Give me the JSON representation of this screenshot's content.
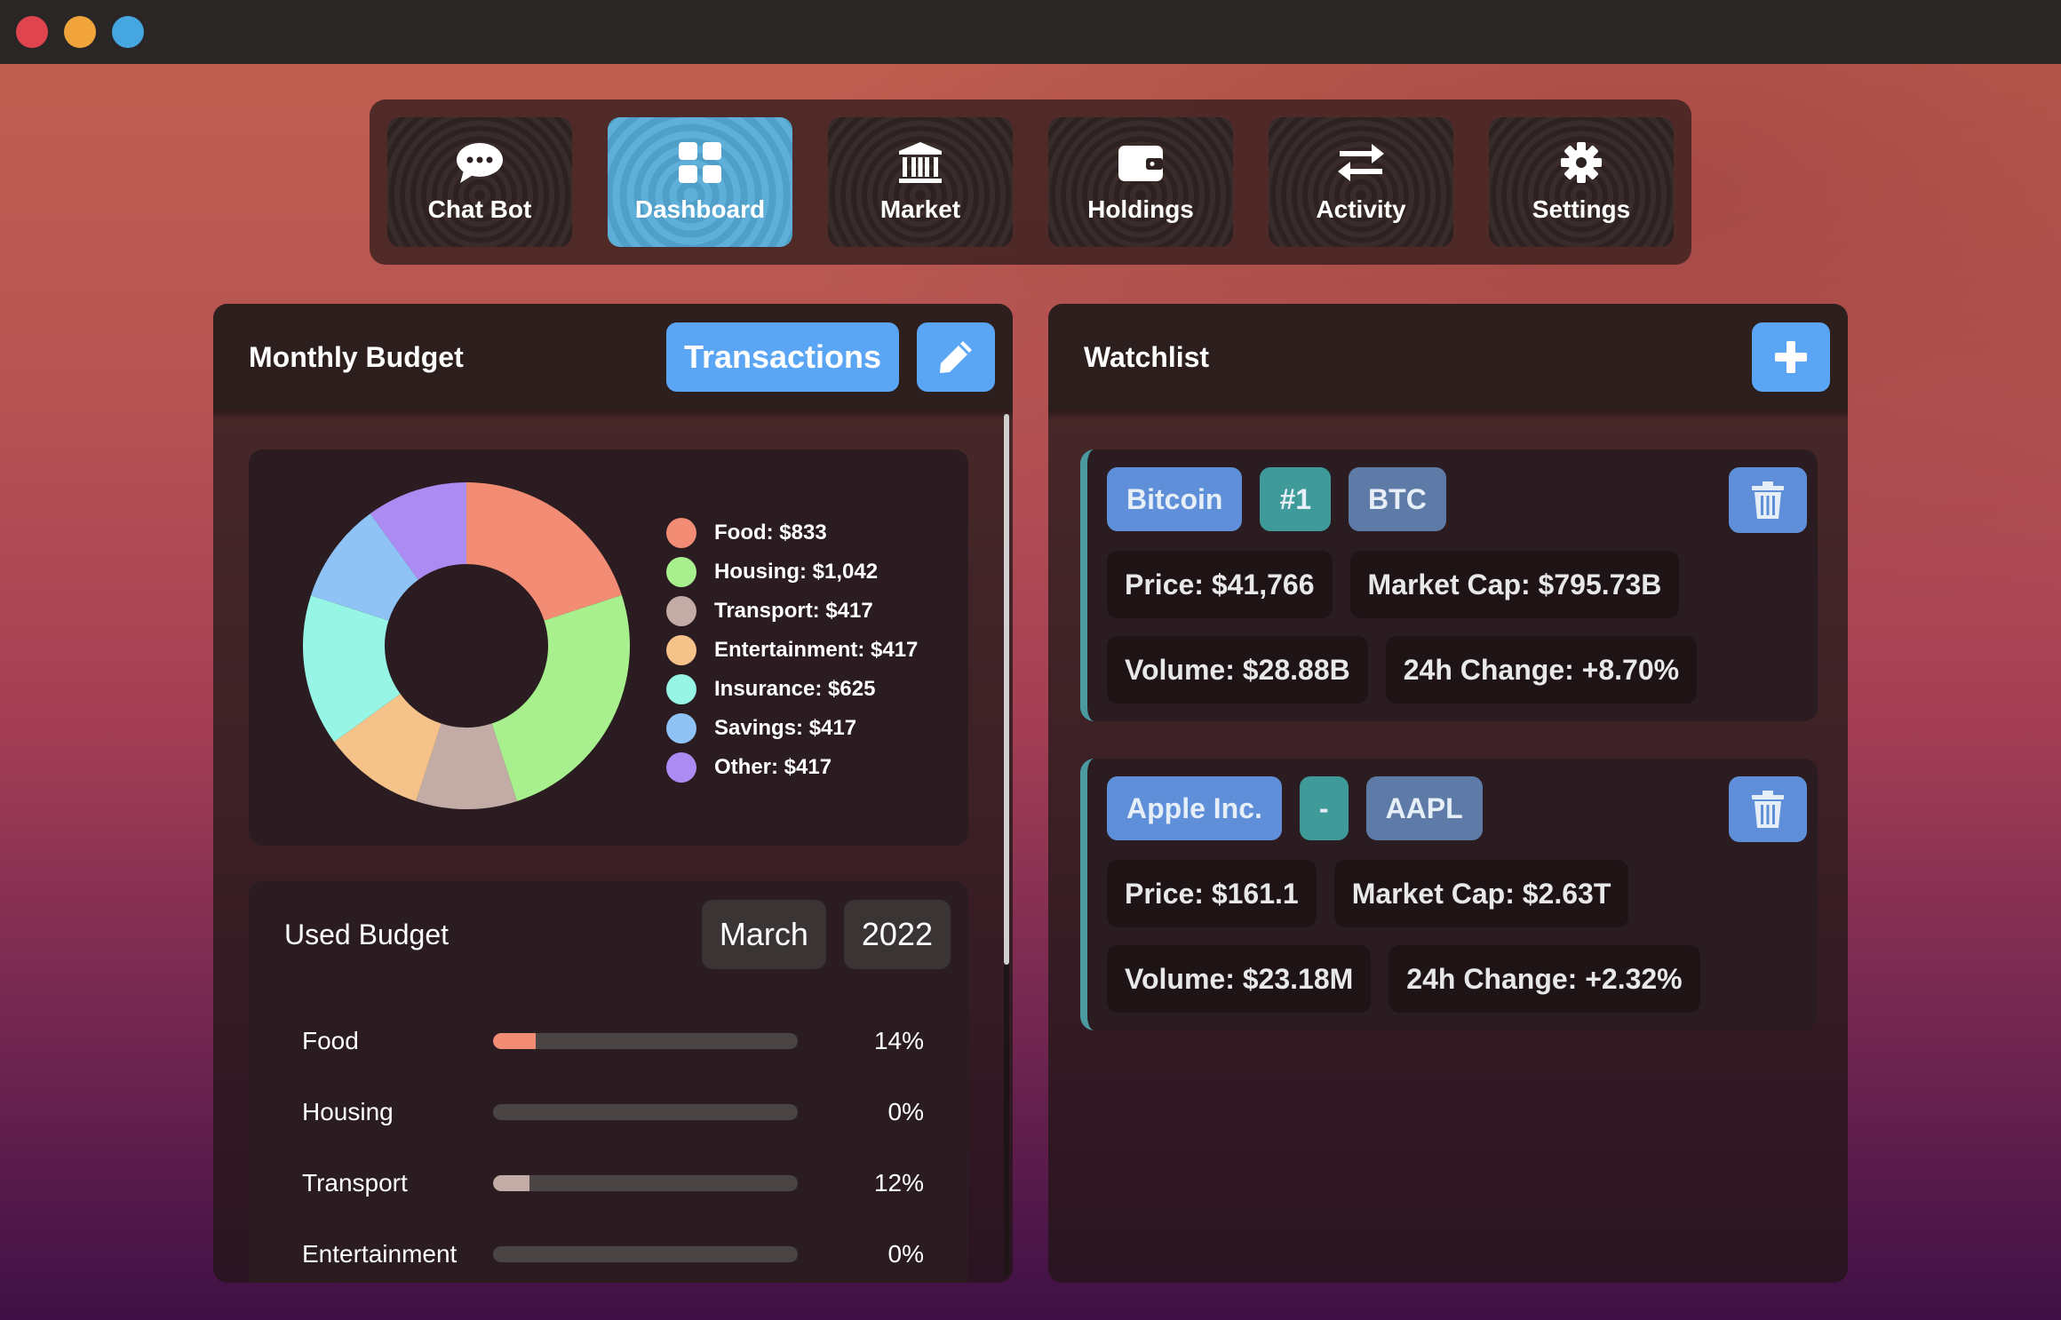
{
  "nav": {
    "items": [
      {
        "label": "Chat Bot",
        "icon": "chat-icon",
        "active": false
      },
      {
        "label": "Dashboard",
        "icon": "grid-icon",
        "active": true
      },
      {
        "label": "Market",
        "icon": "bank-icon",
        "active": false
      },
      {
        "label": "Holdings",
        "icon": "wallet-icon",
        "active": false
      },
      {
        "label": "Activity",
        "icon": "swap-arrows-icon",
        "active": false
      },
      {
        "label": "Settings",
        "icon": "gear-icon",
        "active": false
      }
    ]
  },
  "budget": {
    "title": "Monthly Budget",
    "transactions_label": "Transactions",
    "edit_icon": "pencil-icon",
    "chart_data": {
      "type": "pie",
      "categories": [
        "Food",
        "Housing",
        "Transport",
        "Entertainment",
        "Insurance",
        "Savings",
        "Other"
      ],
      "values": [
        833,
        1042,
        417,
        417,
        625,
        417,
        417
      ],
      "colors": [
        "#f28c74",
        "#a8f08e",
        "#c4aca6",
        "#f5c389",
        "#97f5e6",
        "#8fc2f5",
        "#ac8cf2"
      ],
      "legend": [
        "Food: $833",
        "Housing: $1,042",
        "Transport: $417",
        "Entertainment: $417",
        "Insurance: $625",
        "Savings: $417",
        "Other: $417"
      ]
    },
    "used": {
      "title": "Used Budget",
      "month": "March",
      "year": "2022",
      "rows": [
        {
          "category": "Food",
          "percent": "14%",
          "fraction": 0.14,
          "color": "#f28c74"
        },
        {
          "category": "Housing",
          "percent": "0%",
          "fraction": 0,
          "color": "#a8f08e"
        },
        {
          "category": "Transport",
          "percent": "12%",
          "fraction": 0.12,
          "color": "#c4aca6"
        },
        {
          "category": "Entertainment",
          "percent": "0%",
          "fraction": 0,
          "color": "#f5c389"
        }
      ]
    }
  },
  "watchlist": {
    "title": "Watchlist",
    "add_icon": "plus-icon",
    "items": [
      {
        "name": "Bitcoin",
        "rank": "#1",
        "symbol": "BTC",
        "price": "Price: $41,766",
        "market_cap": "Market Cap: $795.73B",
        "volume": "Volume: $28.88B",
        "change": "24h Change: +8.70%"
      },
      {
        "name": "Apple Inc.",
        "rank": "-",
        "symbol": "AAPL",
        "price": "Price: $161.1",
        "market_cap": "Market Cap: $2.63T",
        "volume": "Volume: $23.18M",
        "change": "24h Change: +2.32%"
      }
    ]
  }
}
